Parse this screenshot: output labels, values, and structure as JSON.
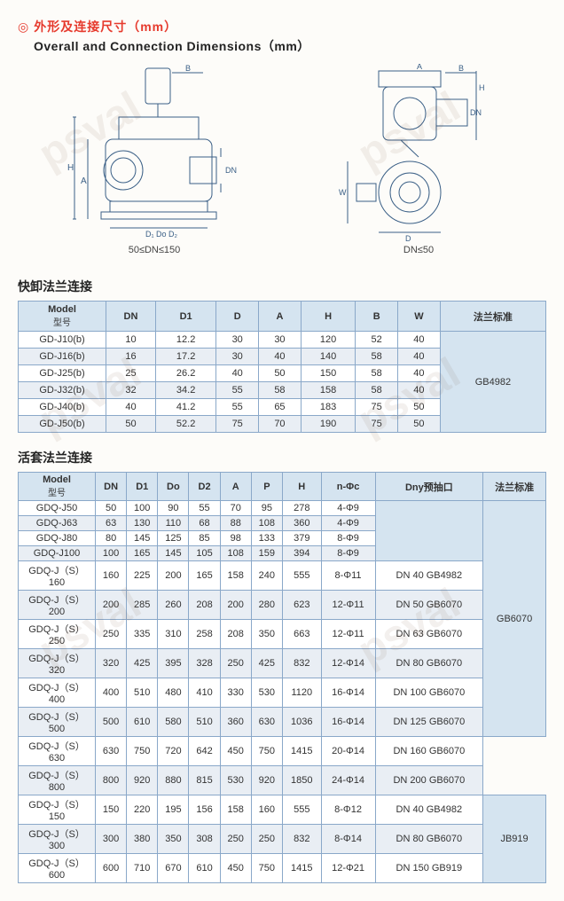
{
  "header": {
    "icon": "◎",
    "title_cn": "外形及连接尺寸（mm）",
    "title_en": "Overall and Connection Dimensions（mm）"
  },
  "diagram1": {
    "caption": "50≤DN≤150"
  },
  "diagram2": {
    "caption": "DN≤50"
  },
  "section1": {
    "title": "快卸法兰连接",
    "headers": {
      "model": "Model",
      "model_sub": "型号",
      "dn": "DN",
      "d1": "D1",
      "d": "D",
      "a": "A",
      "h": "H",
      "b": "B",
      "w": "W",
      "std": "法兰标准"
    },
    "std_value": "GB4982",
    "rows": [
      {
        "model": "GD-J10(b)",
        "dn": "10",
        "d1": "12.2",
        "d": "30",
        "a": "30",
        "h": "120",
        "b": "52",
        "w": "40"
      },
      {
        "model": "GD-J16(b)",
        "dn": "16",
        "d1": "17.2",
        "d": "30",
        "a": "40",
        "h": "140",
        "b": "58",
        "w": "40"
      },
      {
        "model": "GD-J25(b)",
        "dn": "25",
        "d1": "26.2",
        "d": "40",
        "a": "50",
        "h": "150",
        "b": "58",
        "w": "40"
      },
      {
        "model": "GD-J32(b)",
        "dn": "32",
        "d1": "34.2",
        "d": "55",
        "a": "58",
        "h": "158",
        "b": "58",
        "w": "40"
      },
      {
        "model": "GD-J40(b)",
        "dn": "40",
        "d1": "41.2",
        "d": "55",
        "a": "65",
        "h": "183",
        "b": "75",
        "w": "50"
      },
      {
        "model": "GD-J50(b)",
        "dn": "50",
        "d1": "52.2",
        "d": "75",
        "a": "70",
        "h": "190",
        "b": "75",
        "w": "50"
      }
    ]
  },
  "section2": {
    "title": "活套法兰连接",
    "headers": {
      "model": "Model",
      "model_sub": "型号",
      "dn": "DN",
      "d1": "D1",
      "do": "Do",
      "d2": "D2",
      "a": "A",
      "p": "P",
      "h": "H",
      "nphi": "n-Φc",
      "dny": "Dny预抽口",
      "std": "法兰标准"
    },
    "rows": [
      {
        "model": "GDQ-J50",
        "dn": "50",
        "d1": "100",
        "do": "90",
        "d2": "55",
        "a": "70",
        "p": "95",
        "h": "278",
        "nphi": "4-Φ9",
        "dny": "",
        "std": "GB6070",
        "std_span": 10
      },
      {
        "model": "GDQ-J63",
        "dn": "63",
        "d1": "130",
        "do": "110",
        "d2": "68",
        "a": "88",
        "p": "108",
        "h": "360",
        "nphi": "4-Φ9",
        "dny": ""
      },
      {
        "model": "GDQ-J80",
        "dn": "80",
        "d1": "145",
        "do": "125",
        "d2": "85",
        "a": "98",
        "p": "133",
        "h": "379",
        "nphi": "8-Φ9",
        "dny": ""
      },
      {
        "model": "GDQ-J100",
        "dn": "100",
        "d1": "165",
        "do": "145",
        "d2": "105",
        "a": "108",
        "p": "159",
        "h": "394",
        "nphi": "8-Φ9",
        "dny": ""
      },
      {
        "model": "GDQ-J（S）160",
        "dn": "160",
        "d1": "225",
        "do": "200",
        "d2": "165",
        "a": "158",
        "p": "240",
        "h": "555",
        "nphi": "8-Φ11",
        "dny": "DN 40 GB4982"
      },
      {
        "model": "GDQ-J（S）200",
        "dn": "200",
        "d1": "285",
        "do": "260",
        "d2": "208",
        "a": "200",
        "p": "280",
        "h": "623",
        "nphi": "12-Φ11",
        "dny": "DN 50 GB6070"
      },
      {
        "model": "GDQ-J（S）250",
        "dn": "250",
        "d1": "335",
        "do": "310",
        "d2": "258",
        "a": "208",
        "p": "350",
        "h": "663",
        "nphi": "12-Φ11",
        "dny": "DN 63 GB6070"
      },
      {
        "model": "GDQ-J（S）320",
        "dn": "320",
        "d1": "425",
        "do": "395",
        "d2": "328",
        "a": "250",
        "p": "425",
        "h": "832",
        "nphi": "12-Φ14",
        "dny": "DN 80 GB6070"
      },
      {
        "model": "GDQ-J（S）400",
        "dn": "400",
        "d1": "510",
        "do": "480",
        "d2": "410",
        "a": "330",
        "p": "530",
        "h": "1120",
        "nphi": "16-Φ14",
        "dny": "DN 100 GB6070"
      },
      {
        "model": "GDQ-J（S）500",
        "dn": "500",
        "d1": "610",
        "do": "580",
        "d2": "510",
        "a": "360",
        "p": "630",
        "h": "1036",
        "nphi": "16-Φ14",
        "dny": "DN 125 GB6070"
      },
      {
        "model": "GDQ-J（S）630",
        "dn": "630",
        "d1": "750",
        "do": "720",
        "d2": "642",
        "a": "450",
        "p": "750",
        "h": "1415",
        "nphi": "20-Φ14",
        "dny": "DN 160 GB6070"
      },
      {
        "model": "GDQ-J（S）800",
        "dn": "800",
        "d1": "920",
        "do": "880",
        "d2": "815",
        "a": "530",
        "p": "920",
        "h": "1850",
        "nphi": "24-Φ14",
        "dny": "DN 200 GB6070"
      },
      {
        "model": "GDQ-J（S）150",
        "dn": "150",
        "d1": "220",
        "do": "195",
        "d2": "156",
        "a": "158",
        "p": "160",
        "h": "555",
        "nphi": "8-Φ12",
        "dny": "DN 40 GB4982",
        "std": "JB919",
        "std_span": 3
      },
      {
        "model": "GDQ-J（S）300",
        "dn": "300",
        "d1": "380",
        "do": "350",
        "d2": "308",
        "a": "250",
        "p": "250",
        "h": "832",
        "nphi": "8-Φ14",
        "dny": "DN 80 GB6070"
      },
      {
        "model": "GDQ-J（S）600",
        "dn": "600",
        "d1": "710",
        "do": "670",
        "d2": "610",
        "a": "450",
        "p": "750",
        "h": "1415",
        "nphi": "12-Φ21",
        "dny": "DN 150 GB919"
      }
    ]
  }
}
